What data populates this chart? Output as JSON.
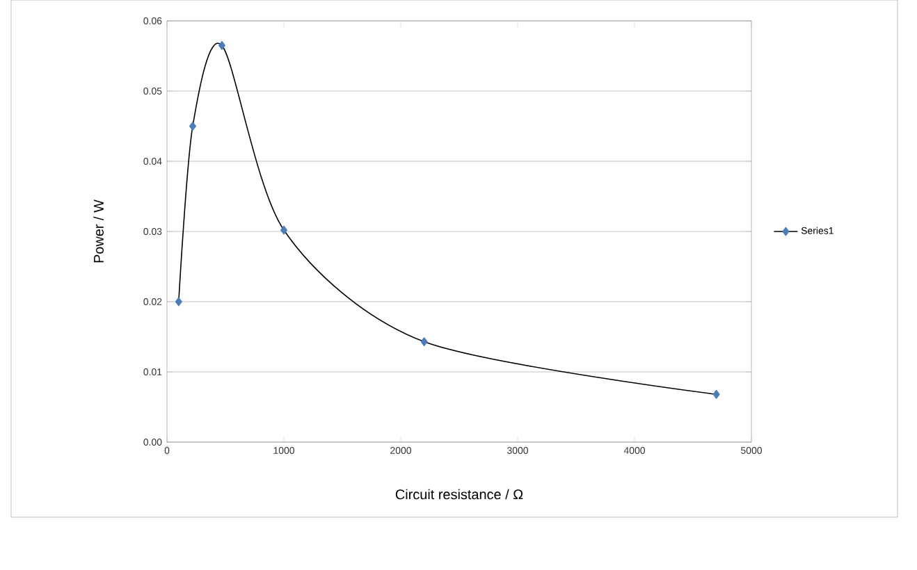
{
  "chart_data": {
    "type": "line",
    "xlabel": "Circuit resistance / Ω",
    "ylabel": "Power / W",
    "series": [
      {
        "name": "Series1",
        "color": "#4a7ebb",
        "x": [
          100,
          220,
          470,
          1000,
          2200,
          4700
        ],
        "values": [
          0.02,
          0.045,
          0.0565,
          0.0302,
          0.0143,
          0.0068
        ]
      }
    ],
    "xlim": [
      0,
      5000
    ],
    "xticks": [
      0,
      1000,
      2000,
      3000,
      4000,
      5000
    ],
    "ylim": [
      0,
      0.06
    ],
    "yticks": [
      {
        "value": 0,
        "label": "0.00"
      },
      {
        "value": 0.01,
        "label": "0.01"
      },
      {
        "value": 0.02,
        "label": "0.02"
      },
      {
        "value": 0.03,
        "label": "0.03"
      },
      {
        "value": 0.04,
        "label": "0.04"
      },
      {
        "value": 0.05,
        "label": "0.05"
      },
      {
        "value": 0.06,
        "label": "0.06"
      }
    ],
    "grid": "y",
    "legend": "right",
    "marker": "diamond",
    "line_style": "solid"
  }
}
